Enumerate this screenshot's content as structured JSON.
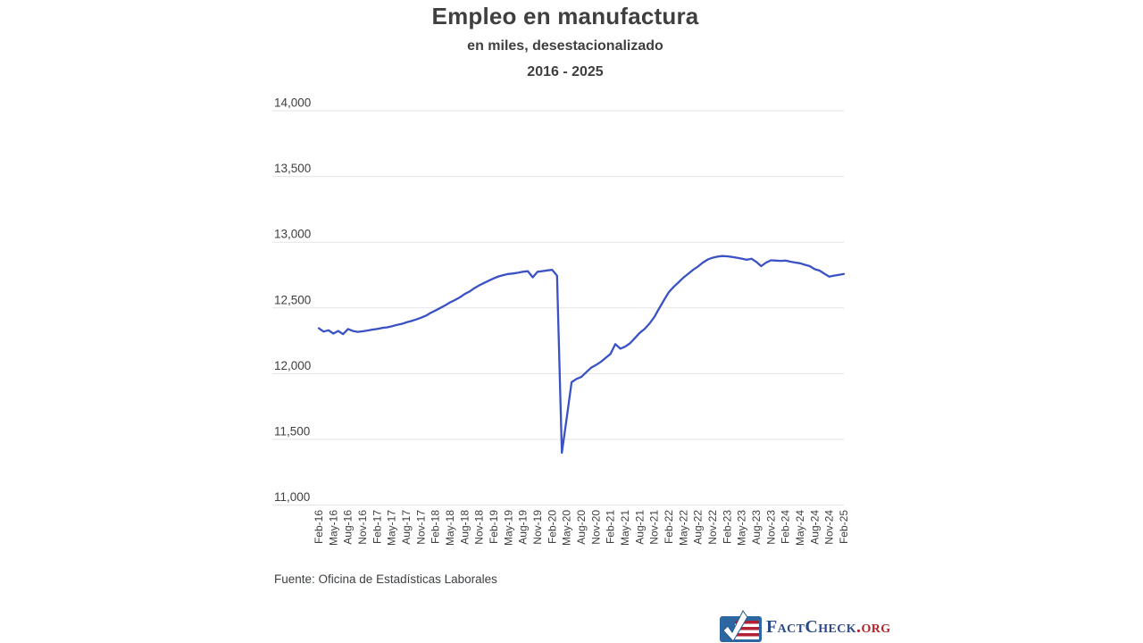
{
  "header": {
    "title": "Empleo en manufactura",
    "subtitle": "en miles, desestacionalizado",
    "period": "2016 - 2025"
  },
  "footer": {
    "source": "Fuente: Oficina de Estadísticas Laborales",
    "logo": {
      "brand": "FactCheck",
      "tld": ".org",
      "mark_icon": "check-flag-icon"
    }
  },
  "colors": {
    "line": "#3b52c4",
    "grid": "#e3e3e3",
    "axis_text": "#3f3f3f",
    "title_text": "#3f3f3f",
    "source_text": "#3c4043",
    "logo_blue": "#2d67a1",
    "logo_navy": "#2c4a87",
    "logo_red": "#b0232a",
    "stripe_red": "#b22234"
  },
  "chart_data": {
    "type": "line",
    "title": "Empleo en manufactura",
    "subtitle": "en miles, desestacionalizado",
    "period": "2016 - 2025",
    "xlabel": "",
    "ylabel": "",
    "ylim": [
      11000,
      14000
    ],
    "y_tick_step": 500,
    "y_tick_labels": [
      "14,000",
      "13,500",
      "13,000",
      "12,500",
      "12,000",
      "11,500",
      "11,000"
    ],
    "grid": "horizontal-only",
    "legend": "none",
    "frequency": "monthly",
    "start_month": "Feb-16",
    "end_month": "Feb-25",
    "x_tick_every_n_months": 3,
    "x_tick_labels": [
      "Feb-16",
      "May-16",
      "Aug-16",
      "Nov-16",
      "Feb-17",
      "May-17",
      "Aug-17",
      "Nov-17",
      "Feb-18",
      "May-18",
      "Aug-18",
      "Nov-18",
      "Feb-19",
      "May-19",
      "Aug-19",
      "Nov-19",
      "Feb-20",
      "May-20",
      "Aug-20",
      "Nov-20",
      "Feb-21",
      "May-21",
      "Aug-21",
      "Nov-21",
      "Feb-22",
      "May-22",
      "Aug-22",
      "Nov-22",
      "Feb-23",
      "May-23",
      "Aug-23",
      "Nov-23",
      "Feb-24",
      "May-24",
      "Aug-24",
      "Nov-24",
      "Feb-25"
    ],
    "series": [
      {
        "name": "Empleo en manufactura (miles)",
        "values": [
          12345,
          12320,
          12330,
          12305,
          12325,
          12300,
          12340,
          12325,
          12318,
          12322,
          12328,
          12335,
          12340,
          12348,
          12352,
          12360,
          12370,
          12378,
          12390,
          12400,
          12412,
          12425,
          12440,
          12462,
          12480,
          12500,
          12520,
          12542,
          12560,
          12580,
          12605,
          12625,
          12650,
          12672,
          12690,
          12708,
          12725,
          12740,
          12750,
          12758,
          12762,
          12768,
          12775,
          12780,
          12733,
          12775,
          12780,
          12785,
          12790,
          12745,
          11398,
          11665,
          11935,
          11960,
          11975,
          12010,
          12045,
          12065,
          12090,
          12120,
          12150,
          12225,
          12190,
          12205,
          12230,
          12270,
          12310,
          12340,
          12380,
          12430,
          12495,
          12560,
          12620,
          12660,
          12695,
          12730,
          12760,
          12790,
          12815,
          12845,
          12868,
          12882,
          12890,
          12895,
          12893,
          12888,
          12882,
          12875,
          12866,
          12874,
          12850,
          12818,
          12845,
          12862,
          12860,
          12858,
          12860,
          12852,
          12845,
          12840,
          12828,
          12818,
          12795,
          12784,
          12760,
          12738,
          12746,
          12752,
          12758
        ]
      }
    ]
  }
}
